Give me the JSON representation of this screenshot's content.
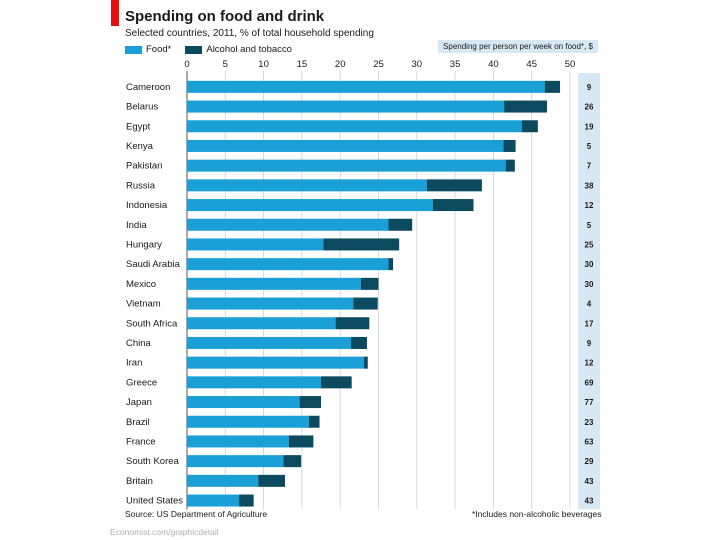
{
  "header": {
    "title": "Spending on food and drink",
    "subtitle": "Selected countries, 2011, % of total household spending",
    "right_column_title": "Spending per person per week on food*, $"
  },
  "colors": {
    "food": "#1a9fd7",
    "alcohol": "#0b4a5f",
    "red_tab": "#e3120b",
    "panel": "#d6e8f3"
  },
  "chart_data": {
    "type": "bar",
    "orientation": "horizontal",
    "stacked": true,
    "title": "Spending on food and drink",
    "subtitle": "Selected countries, 2011, % of total household spending",
    "xlim": [
      0,
      50
    ],
    "x_ticks": [
      0,
      5,
      10,
      15,
      20,
      25,
      30,
      35,
      40,
      45,
      50
    ],
    "grid": true,
    "legend_position": "top-left",
    "categories": [
      "Cameroon",
      "Belarus",
      "Egypt",
      "Kenya",
      "Pakistan",
      "Russia",
      "Indonesia",
      "India",
      "Hungary",
      "Saudi Arabia",
      "Mexico",
      "Vietnam",
      "South Africa",
      "China",
      "Iran",
      "Greece",
      "Japan",
      "Brazil",
      "France",
      "South Korea",
      "Britain",
      "United States"
    ],
    "series": [
      {
        "name": "Food*",
        "values": [
          46.7,
          41.4,
          43.7,
          41.3,
          41.6,
          31.3,
          32.1,
          26.3,
          17.8,
          26.3,
          22.7,
          21.7,
          19.4,
          21.4,
          23.1,
          17.5,
          14.7,
          15.9,
          13.3,
          12.6,
          9.3,
          6.8
        ]
      },
      {
        "name": "Alcohol and tobacco",
        "values": [
          2.0,
          5.6,
          2.1,
          1.6,
          1.2,
          7.2,
          5.3,
          3.1,
          9.9,
          0.6,
          2.3,
          3.2,
          4.4,
          2.1,
          0.5,
          4.0,
          2.8,
          1.4,
          3.2,
          2.3,
          3.5,
          1.9
        ]
      }
    ],
    "right_column": {
      "title": "Spending per person per week on food*, $",
      "values": [
        "9",
        "26",
        "19",
        "5",
        "7",
        "38",
        "12",
        "5",
        "25",
        "30",
        "30",
        "4",
        "17",
        "9",
        "12",
        "69",
        "77",
        "23",
        "63",
        "29",
        "43",
        "43"
      ]
    }
  },
  "footer": {
    "source": "Source: US Department of Agriculture",
    "footnote": "*Includes non-alcoholic beverages",
    "credit": "Economist.com/graphicdetail"
  }
}
